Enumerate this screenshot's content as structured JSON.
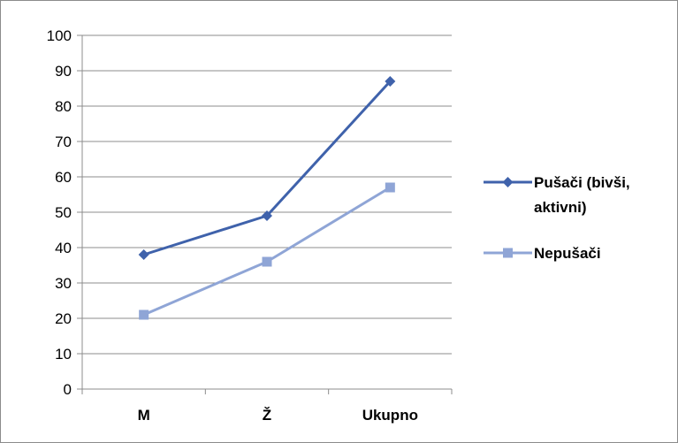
{
  "chart_data": {
    "type": "line",
    "title": "",
    "xlabel": "",
    "ylabel": "",
    "categories": [
      "M",
      "Ž",
      "Ukupno"
    ],
    "ylim": [
      0,
      100
    ],
    "yticks": [
      0,
      10,
      20,
      30,
      40,
      50,
      60,
      70,
      80,
      90,
      100
    ],
    "grid": true,
    "legend_position": "right",
    "series": [
      {
        "name_lines": [
          "Pušači (bivši,",
          "aktivni)"
        ],
        "values": [
          38,
          49,
          87
        ],
        "color": "#3F62AB",
        "marker": "diamond"
      },
      {
        "name_lines": [
          "Nepušači"
        ],
        "values": [
          21,
          36,
          57
        ],
        "color": "#8FA5D6",
        "marker": "square"
      }
    ]
  }
}
